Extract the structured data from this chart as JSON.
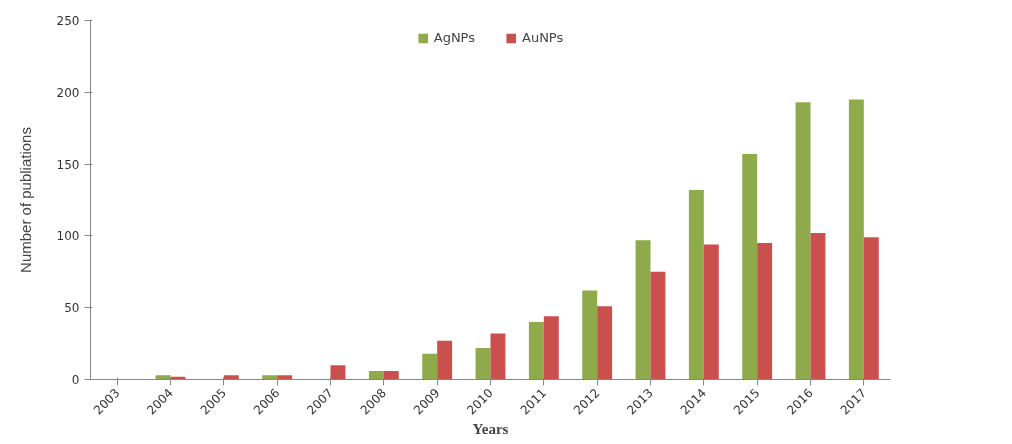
{
  "chart_data": {
    "type": "bar",
    "categories": [
      "2003",
      "2004",
      "2005",
      "2006",
      "2007",
      "2008",
      "2009",
      "2010",
      "2011",
      "2012",
      "2013",
      "2014",
      "2015",
      "2016",
      "2017"
    ],
    "series": [
      {
        "name": "AgNPs",
        "color": "#8faa4a",
        "values": [
          0,
          3,
          0,
          3,
          0,
          6,
          18,
          22,
          40,
          62,
          97,
          132,
          157,
          193,
          195
        ]
      },
      {
        "name": "AuNPs",
        "color": "#c9504d",
        "values": [
          0,
          2,
          3,
          3,
          10,
          6,
          27,
          32,
          44,
          51,
          75,
          94,
          95,
          102,
          99
        ]
      }
    ],
    "xlabel": "Years",
    "ylabel": "Number of publiations",
    "ylim": [
      0,
      250
    ],
    "yticks": [
      0,
      50,
      100,
      150,
      200,
      250
    ],
    "grid": false,
    "legend": "top"
  }
}
